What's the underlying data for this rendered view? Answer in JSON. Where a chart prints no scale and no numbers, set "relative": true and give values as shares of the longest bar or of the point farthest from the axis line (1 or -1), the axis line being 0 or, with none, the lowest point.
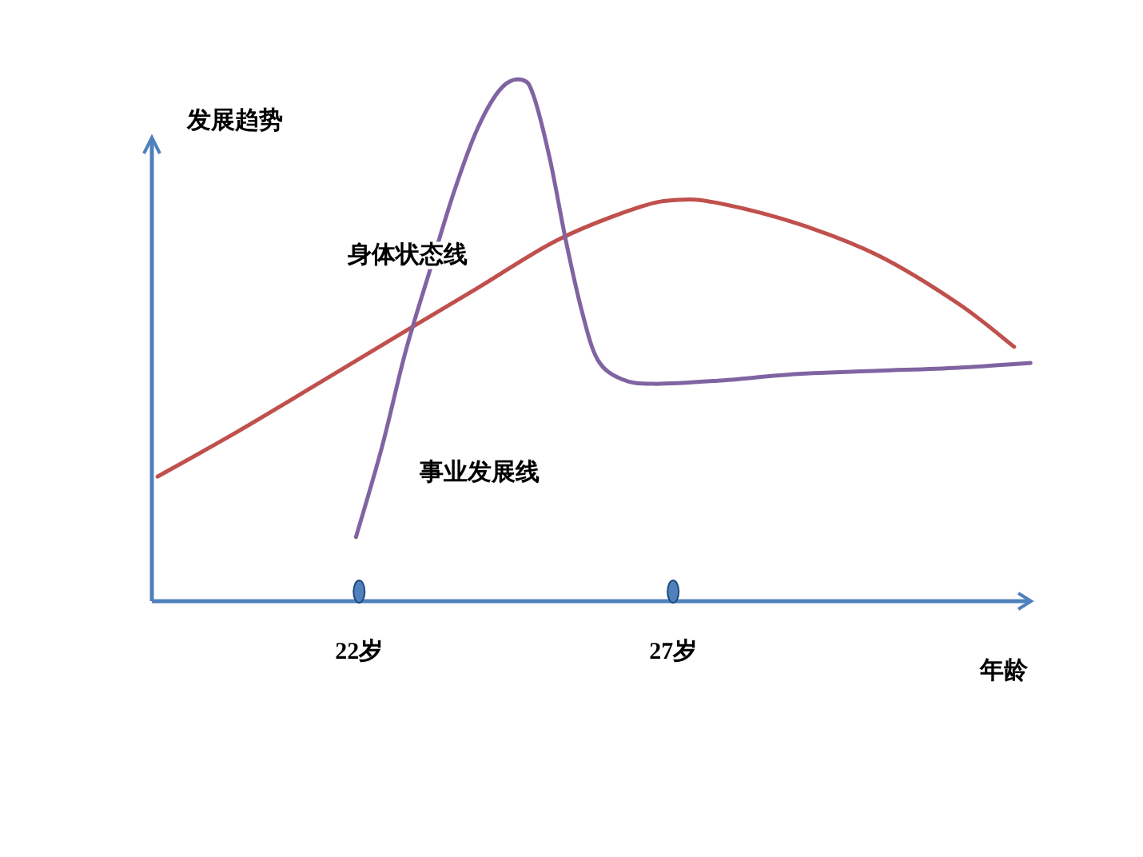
{
  "chart_data": {
    "type": "line",
    "relative": true,
    "ylabel": "发展趋势",
    "xlabel": "年龄",
    "xlim": [
      18.7,
      32.7
    ],
    "xticks": [
      {
        "value": 22,
        "label": "22岁"
      },
      {
        "value": 27,
        "label": "27岁"
      }
    ],
    "legend": false,
    "grid": false,
    "marker": "none",
    "line_style": "solid",
    "series": [
      {
        "name": "身体状态线",
        "color": "#c0504d",
        "x": [
          18.79,
          20.06,
          21.34,
          22.61,
          23.89,
          25.16,
          26.44,
          27.08,
          27.71,
          28.99,
          30.27,
          31.54,
          32.43
        ],
        "values": [
          0.239,
          0.325,
          0.417,
          0.509,
          0.601,
          0.693,
          0.755,
          0.77,
          0.764,
          0.724,
          0.663,
          0.571,
          0.488
        ]
      },
      {
        "name": "事业发展线",
        "color": "#8064a2",
        "x": [
          21.95,
          22.36,
          22.74,
          23.12,
          23.51,
          23.89,
          24.27,
          24.6,
          24.78,
          25.04,
          25.29,
          25.55,
          25.8,
          26.18,
          26.69,
          27.71,
          28.99,
          30.27,
          31.54,
          32.69
        ],
        "values": [
          0.123,
          0.294,
          0.479,
          0.632,
          0.785,
          0.908,
          0.985,
          1.0,
          0.969,
          0.847,
          0.693,
          0.555,
          0.463,
          0.426,
          0.417,
          0.423,
          0.436,
          0.442,
          0.448,
          0.457
        ]
      }
    ]
  }
}
